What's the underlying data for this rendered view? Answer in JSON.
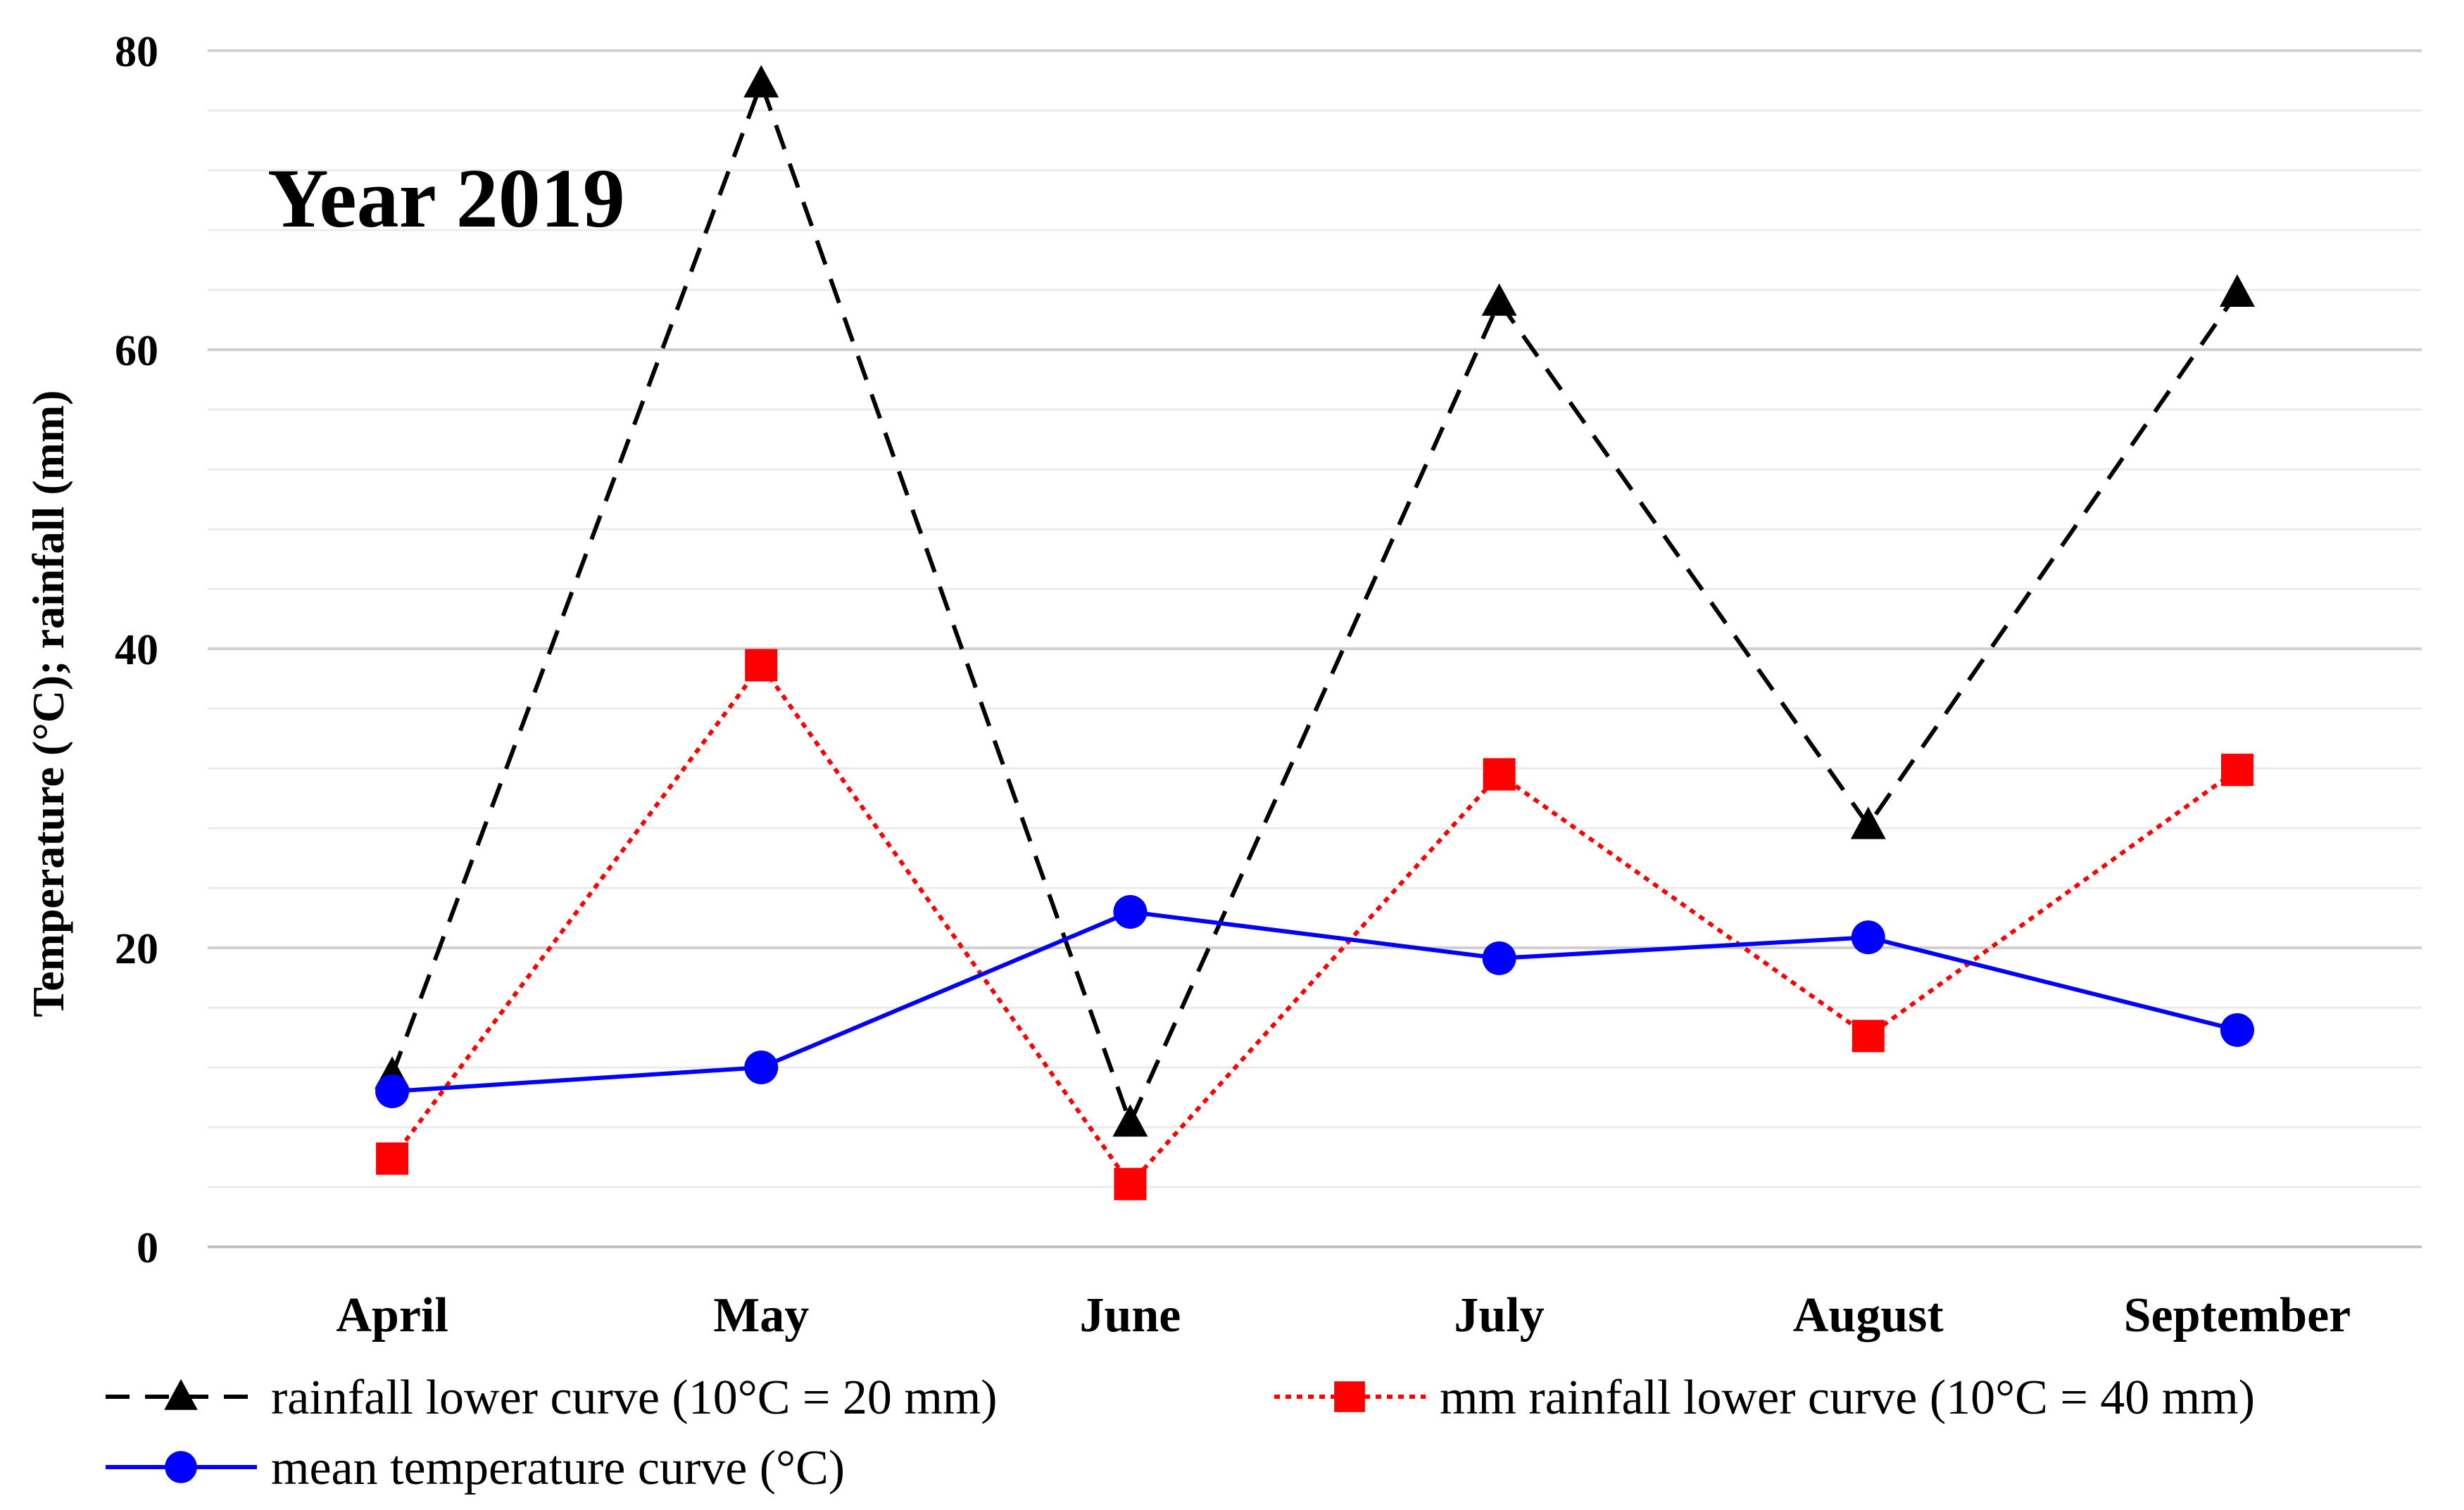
{
  "chart_data": {
    "type": "line",
    "title": "Year 2019",
    "xlabel": "",
    "ylabel": "Temperature (°C); rainfall (mm)",
    "ylim": [
      0,
      80
    ],
    "y_ticks": [
      "0",
      "20",
      "40",
      "60",
      "80"
    ],
    "categories": [
      "April",
      "May",
      "June",
      "July",
      "August",
      "September"
    ],
    "grid": "horizontal major and minor",
    "legend": "bottom",
    "series": [
      {
        "name": "rainfall lower curve (10°C = 20 mm)",
        "color": "#000000",
        "line_style": "dashed",
        "marker": "triangle",
        "values": [
          11.5,
          77.8,
          8.3,
          63.2,
          28.2,
          63.8
        ]
      },
      {
        "name": "mm rainfall lower curve (10°C = 40 mm)",
        "color": "#ff0000",
        "line_style": "dotted",
        "marker": "square",
        "values": [
          5.9,
          38.9,
          4.2,
          31.6,
          14.1,
          31.9
        ]
      },
      {
        "name": "mean temperature curve (°C)",
        "color": "#0000ff",
        "line_style": "solid",
        "marker": "circle",
        "values": [
          10.4,
          12.0,
          22.4,
          19.3,
          20.7,
          14.5
        ]
      }
    ]
  }
}
